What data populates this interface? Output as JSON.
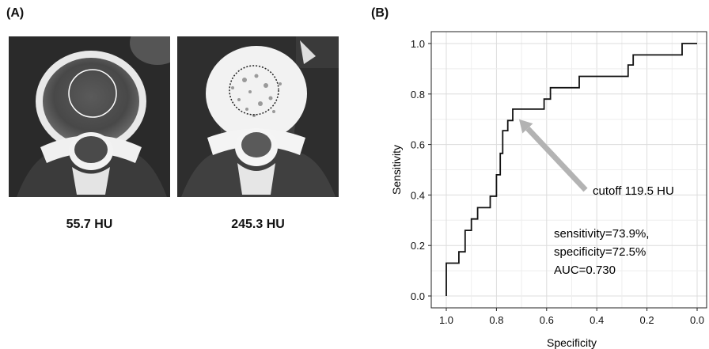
{
  "panel_a": {
    "label": "(A)",
    "images": [
      {
        "caption": "55.7 HU",
        "roi_color": "#ffffff"
      },
      {
        "caption": "245.3 HU",
        "roi_color": "#222222"
      }
    ]
  },
  "panel_b": {
    "label": "(B)"
  },
  "chart_data": {
    "type": "line",
    "xlabel": "Specificity",
    "ylabel": "Sensitivity",
    "xlim": [
      1.0,
      0.0
    ],
    "ylim": [
      0.0,
      1.0
    ],
    "x_ticks": [
      "1.0",
      "0.8",
      "0.6",
      "0.4",
      "0.2",
      "0.0"
    ],
    "y_ticks": [
      "0.0",
      "0.2",
      "0.4",
      "0.6",
      "0.8",
      "1.0"
    ],
    "grid": true,
    "series": [
      {
        "x": [
          1.0,
          1.0,
          0.95,
          0.95,
          0.925,
          0.925,
          0.9,
          0.9,
          0.875,
          0.875,
          0.825,
          0.825,
          0.8,
          0.8,
          0.785,
          0.785,
          0.775,
          0.775,
          0.755,
          0.755,
          0.735,
          0.735,
          0.725,
          0.725,
          0.61,
          0.61,
          0.585,
          0.585,
          0.47,
          0.47,
          0.275,
          0.275,
          0.255,
          0.255,
          0.06,
          0.06,
          0.0
        ],
        "y": [
          0.0,
          0.13,
          0.13,
          0.175,
          0.175,
          0.26,
          0.26,
          0.305,
          0.305,
          0.35,
          0.35,
          0.395,
          0.395,
          0.48,
          0.48,
          0.565,
          0.565,
          0.655,
          0.655,
          0.695,
          0.695,
          0.74,
          0.74,
          0.74,
          0.74,
          0.78,
          0.78,
          0.825,
          0.825,
          0.87,
          0.87,
          0.915,
          0.915,
          0.955,
          0.955,
          1.0,
          1.0
        ],
        "color": "#111111"
      }
    ],
    "annotations": {
      "cutoff_text": "cutoff 119.5 HU",
      "arrow_tip": {
        "x": 0.71,
        "y": 0.7
      },
      "arrow_color": "#b3b3b3",
      "stats": [
        "sensitivity=73.9%,",
        "specificity=72.5%",
        "AUC=0.730"
      ]
    }
  }
}
